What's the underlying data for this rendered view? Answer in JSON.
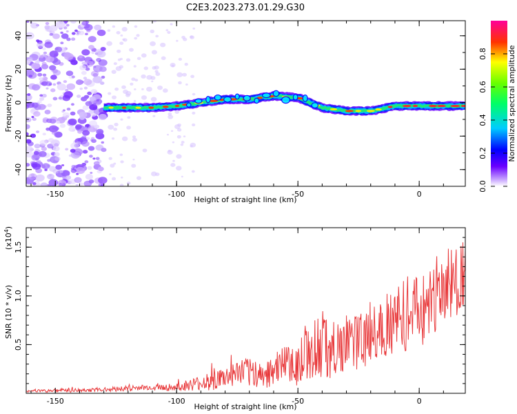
{
  "figure_title": "C2E3.2023.273.01.29.G30",
  "chart_data": [
    {
      "type": "heatmap",
      "xlabel": "Height of straight line (km)",
      "ylabel": "Frequency (Hz)",
      "xlim": [
        -162,
        19
      ],
      "ylim": [
        -50,
        49
      ],
      "xticks": [
        -150,
        -100,
        -50,
        0
      ],
      "yticks": [
        -40,
        -20,
        0,
        20,
        40
      ],
      "colorbar": {
        "label": "Normalized spectral amplitude",
        "range": [
          0,
          1
        ],
        "ticks": [
          0.0,
          0.2,
          0.4,
          0.6,
          0.8
        ],
        "tick_labels": [
          "0.0",
          "0.2",
          "0.4",
          "0.6",
          "0.8"
        ],
        "colormap": "rainbow (white, violet, blue, cyan, green, yellow, red, magenta)"
      },
      "ridge": {
        "description": "Narrow band of high amplitude tracking the signal frequency",
        "x_start": -130,
        "points": [
          {
            "x": -130,
            "y": -3
          },
          {
            "x": -120,
            "y": -3
          },
          {
            "x": -110,
            "y": -3
          },
          {
            "x": -100,
            "y": -2
          },
          {
            "x": -90,
            "y": 0
          },
          {
            "x": -80,
            "y": 2
          },
          {
            "x": -70,
            "y": 2
          },
          {
            "x": -60,
            "y": 4
          },
          {
            "x": -50,
            "y": 3
          },
          {
            "x": -45,
            "y": 0
          },
          {
            "x": -40,
            "y": -3
          },
          {
            "x": -30,
            "y": -5
          },
          {
            "x": -20,
            "y": -5
          },
          {
            "x": -10,
            "y": -2
          },
          {
            "x": 0,
            "y": -2
          },
          {
            "x": 10,
            "y": -2
          },
          {
            "x": 19,
            "y": -2
          }
        ]
      },
      "noise_region": {
        "x_range": [
          -162,
          -130
        ],
        "description": "scattered low-amplitude noise"
      }
    },
    {
      "type": "line",
      "xlabel": "Height of straight line (km)",
      "ylabel": "SNR (10 * v/v)",
      "y_scale_label": "(x10",
      "y_scale_exponent": "4",
      "y_scale_suffix": ")",
      "xlim": [
        -162,
        19
      ],
      "ylim": [
        0,
        1.7
      ],
      "xticks": [
        -150,
        -100,
        -50,
        0
      ],
      "yticks": [
        0.5,
        1.0,
        1.5
      ],
      "ytick_labels": [
        "0.5",
        "1.0",
        "1.5"
      ],
      "color": "#e8383a",
      "series": [
        {
          "x": [
            -162,
            -150,
            -140,
            -130,
            -120,
            -110,
            -100,
            -95,
            -90,
            -85,
            -80,
            -75,
            -70,
            -65,
            -60,
            -55,
            -50,
            -45,
            -40,
            -35,
            -30,
            -25,
            -20,
            -15,
            -10,
            -5,
            0,
            5,
            10,
            15,
            19
          ],
          "values": [
            0.02,
            0.03,
            0.03,
            0.04,
            0.05,
            0.06,
            0.06,
            0.08,
            0.1,
            0.13,
            0.15,
            0.2,
            0.22,
            0.18,
            0.25,
            0.28,
            0.3,
            0.45,
            0.5,
            0.45,
            0.5,
            0.55,
            0.6,
            0.7,
            0.75,
            0.8,
            0.85,
            0.95,
            1.05,
            1.15,
            1.25
          ],
          "noise_amplitude": [
            0.015,
            0.02,
            0.02,
            0.02,
            0.03,
            0.03,
            0.04,
            0.06,
            0.08,
            0.1,
            0.12,
            0.13,
            0.15,
            0.15,
            0.18,
            0.2,
            0.22,
            0.3,
            0.35,
            0.3,
            0.3,
            0.3,
            0.35,
            0.35,
            0.35,
            0.4,
            0.4,
            0.4,
            0.45,
            0.4,
            0.35
          ]
        }
      ]
    }
  ]
}
